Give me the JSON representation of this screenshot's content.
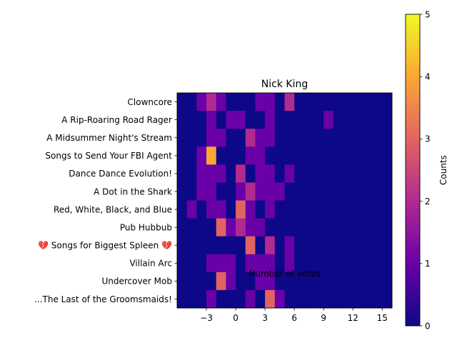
{
  "chart_data": {
    "type": "heatmap",
    "title": "Nick King",
    "xlabel": "Number of votes",
    "ylabel": "",
    "x_range": [
      -6,
      16
    ],
    "x_ticks": [
      -3,
      0,
      3,
      6,
      9,
      12,
      15
    ],
    "x_tick_labels": [
      "−3",
      "0",
      "3",
      "6",
      "9",
      "12",
      "15"
    ],
    "categories": [
      "Clowncore",
      "A Rip-Roaring Road Rager",
      "A Midsummer Night's Stream",
      "Songs to Send Your FBI Agent",
      "Dance Dance Evolution!",
      "A Dot in the Shark",
      "Red, White, Black, and Blue",
      "Pub Hubbub",
      "💔 Songs for Biggest Spleen 💔",
      "Villain Arc",
      "Undercover Mob",
      "...The Last of the Groomsmaids!"
    ],
    "values": [
      [
        0,
        0,
        1,
        2,
        1,
        0,
        0,
        0,
        1,
        1,
        0,
        2,
        0,
        0,
        0,
        0,
        0,
        0,
        0,
        0,
        0,
        0
      ],
      [
        0,
        0,
        0,
        1,
        0,
        1,
        1,
        0,
        0,
        1,
        0,
        0,
        0,
        0,
        0,
        1,
        0,
        0,
        0,
        0,
        0,
        0
      ],
      [
        0,
        0,
        0,
        1,
        1,
        0,
        0,
        2,
        1,
        1,
        0,
        0,
        0,
        0,
        0,
        0,
        0,
        0,
        0,
        0,
        0,
        0
      ],
      [
        0,
        0,
        1,
        4,
        0,
        0,
        0,
        1,
        1,
        0,
        0,
        0,
        0,
        0,
        0,
        0,
        0,
        0,
        0,
        0,
        0,
        0
      ],
      [
        0,
        0,
        1,
        1,
        1,
        0,
        2,
        0,
        1,
        1,
        0,
        1,
        0,
        0,
        0,
        0,
        0,
        0,
        0,
        0,
        0,
        0
      ],
      [
        0,
        0,
        1,
        1,
        0,
        0,
        1,
        2,
        1,
        1,
        1,
        0,
        0,
        0,
        0,
        0,
        0,
        0,
        0,
        0,
        0,
        0
      ],
      [
        0,
        1,
        0,
        1,
        1,
        0,
        3,
        1,
        0,
        1,
        0,
        0,
        0,
        0,
        0,
        0,
        0,
        0,
        0,
        0,
        0,
        0
      ],
      [
        0,
        0,
        0,
        0,
        3,
        1,
        2,
        1,
        1,
        0,
        0,
        0,
        0,
        0,
        0,
        0,
        0,
        0,
        0,
        0,
        0,
        0
      ],
      [
        0,
        0,
        0,
        0,
        0,
        0,
        0,
        3,
        0,
        2,
        0,
        1,
        0,
        0,
        0,
        0,
        0,
        0,
        0,
        0,
        0,
        0
      ],
      [
        0,
        0,
        0,
        1,
        1,
        1,
        0,
        1,
        1,
        1,
        0,
        1,
        0,
        0,
        0,
        0,
        0,
        0,
        0,
        0,
        0,
        0
      ],
      [
        0,
        0,
        0,
        0,
        3,
        1,
        0,
        0,
        1,
        1,
        0,
        0,
        0,
        0,
        0,
        0,
        0,
        0,
        0,
        0,
        0,
        0
      ],
      [
        0,
        0,
        0,
        1,
        0,
        0,
        0,
        1,
        0,
        3,
        1,
        0,
        0,
        0,
        0,
        0,
        0,
        0,
        0,
        0,
        0,
        0
      ]
    ],
    "colormap": "plasma",
    "vmin": 0,
    "vmax": 5,
    "colorbar_label": "Counts",
    "colorbar_ticks": [
      "0",
      "1",
      "2",
      "3",
      "4",
      "5"
    ]
  }
}
